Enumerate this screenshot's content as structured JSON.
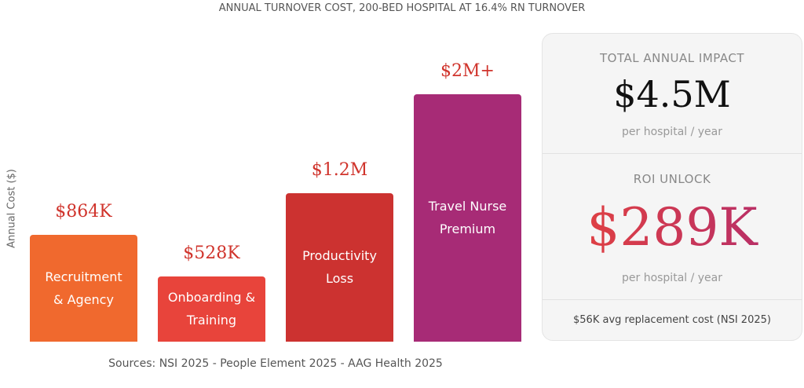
{
  "chart_data": {
    "type": "bar",
    "title": "ANNUAL TURNOVER COST, 200-BED HOSPITAL AT 16.4% RN TURNOVER",
    "y_label": "Annual Cost ($)",
    "categories": [
      "Recruitment & Agency",
      "Onboarding & Training",
      "Productivity Loss",
      "Travel Nurse Premium"
    ],
    "values": [
      864000,
      528000,
      1200000,
      2000000
    ],
    "value_labels": [
      "$864K",
      "$528K",
      "$1.2M",
      "$2M+"
    ],
    "colors": [
      "#f0692e",
      "#e8443b",
      "#cc3230",
      "#a72b76"
    ],
    "ylim": [
      0,
      2500000
    ],
    "source": "Sources: NSI 2025 - People Element 2025 - AAG Health 2025"
  },
  "panel": {
    "impact": {
      "title": "TOTAL ANNUAL IMPACT",
      "value": "$4.5M",
      "note": "per hospital / year"
    },
    "roi": {
      "title": "ROI UNLOCK",
      "value": "$289K",
      "note": "per hospital / year"
    },
    "footer": "$56K avg replacement cost (NSI 2025)"
  }
}
